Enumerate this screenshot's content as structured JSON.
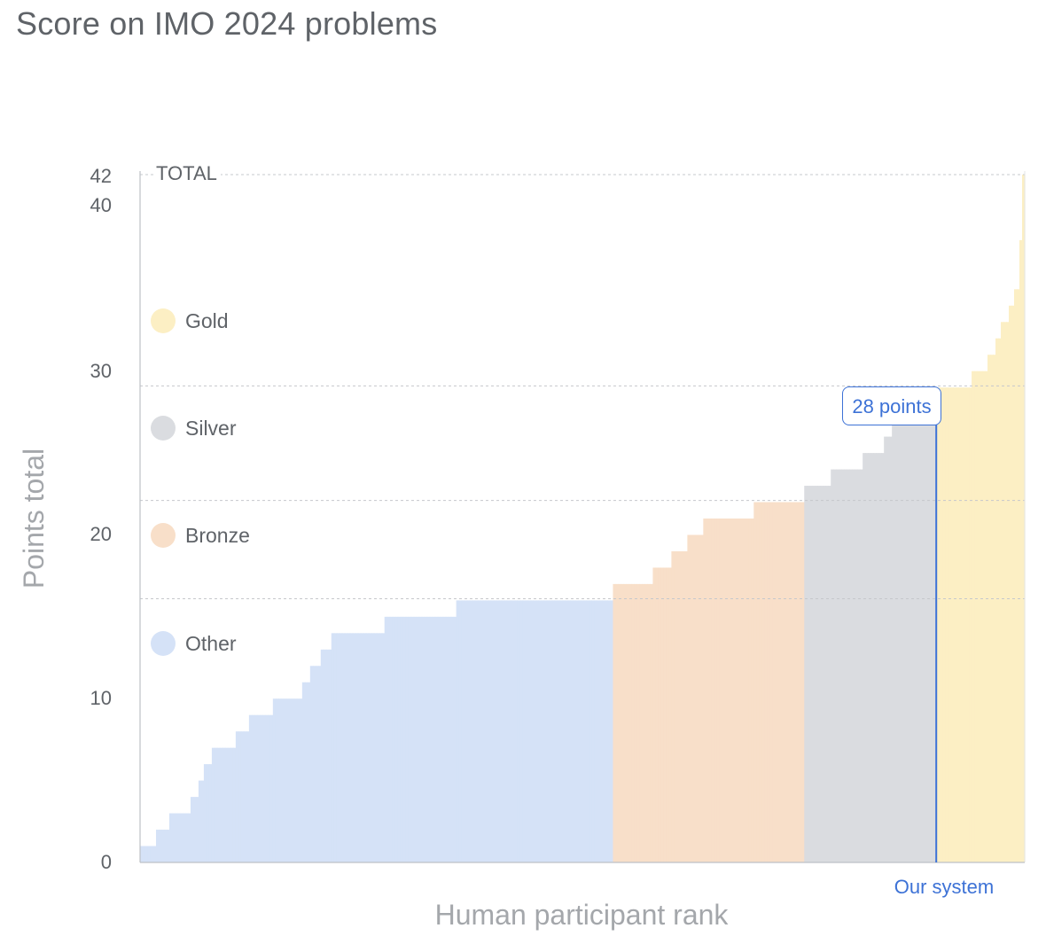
{
  "title": "Score on IMO 2024 problems",
  "chart_data": {
    "type": "area",
    "title": "Score on IMO 2024 problems",
    "xlabel": "Human participant rank",
    "ylabel": "Points total",
    "ylim": [
      0,
      42
    ],
    "yticks": [
      "0",
      "10",
      "20",
      "30",
      "40",
      "42"
    ],
    "total_label": "TOTAL",
    "medal_cutoffs": {
      "gold": 29,
      "silver": 22,
      "bronze": 16
    },
    "grid": "dashed at medal cutoffs and maximum",
    "legend": [
      {
        "name": "Gold",
        "color": "#fcefc4"
      },
      {
        "name": "Silver",
        "color": "#dadce0"
      },
      {
        "name": "Bronze",
        "color": "#f8dfc9"
      },
      {
        "name": "Other",
        "color": "#d5e2f7"
      }
    ],
    "series": [
      {
        "name": "Other",
        "color": "#d5e2f7",
        "values": [
          1,
          1,
          1,
          1,
          1,
          1,
          2,
          2,
          2,
          2,
          2,
          3,
          3,
          3,
          3,
          3,
          3,
          3,
          3,
          4,
          4,
          4,
          5,
          5,
          6,
          6,
          6,
          7,
          7,
          7,
          7,
          7,
          7,
          7,
          7,
          7,
          8,
          8,
          8,
          8,
          8,
          9,
          9,
          9,
          9,
          9,
          9,
          9,
          9,
          9,
          10,
          10,
          10,
          10,
          10,
          10,
          10,
          10,
          10,
          10,
          10,
          11,
          11,
          11,
          12,
          12,
          12,
          12,
          13,
          13,
          13,
          13,
          14,
          14,
          14,
          14,
          14,
          14,
          14,
          14,
          14,
          14,
          14,
          14,
          14,
          14,
          14,
          14,
          14,
          14,
          14,
          14,
          15,
          15,
          15,
          15,
          15,
          15,
          15,
          15,
          15,
          15,
          15,
          15,
          15,
          15,
          15,
          15,
          15,
          15,
          15,
          15,
          15,
          15,
          15,
          15,
          15,
          15,
          15,
          16,
          16,
          16,
          16,
          16,
          16,
          16,
          16,
          16,
          16,
          16,
          16,
          16,
          16,
          16,
          16,
          16,
          16,
          16,
          16,
          16,
          16,
          16,
          16,
          16,
          16,
          16,
          16,
          16,
          16,
          16,
          16,
          16,
          16,
          16,
          16,
          16,
          16,
          16,
          16,
          16,
          16,
          16,
          16,
          16,
          16,
          16,
          16,
          16,
          16,
          16,
          16,
          16,
          16,
          16,
          16,
          16,
          16,
          16
        ]
      },
      {
        "name": "Bronze",
        "color": "#f8dfc9",
        "values": [
          17,
          17,
          17,
          17,
          17,
          17,
          17,
          17,
          17,
          17,
          17,
          17,
          17,
          17,
          17,
          18,
          18,
          18,
          18,
          18,
          18,
          18,
          19,
          19,
          19,
          19,
          19,
          19,
          20,
          20,
          20,
          20,
          20,
          20,
          21,
          21,
          21,
          21,
          21,
          21,
          21,
          21,
          21,
          21,
          21,
          21,
          21,
          21,
          21,
          21,
          21,
          21,
          21,
          22,
          22,
          22,
          22,
          22,
          22,
          22,
          22,
          22,
          22,
          22,
          22,
          22,
          22,
          22,
          22,
          22,
          22,
          22
        ]
      },
      {
        "name": "Silver",
        "color": "#dadce0",
        "values": [
          23,
          23,
          23,
          23,
          23,
          23,
          23,
          23,
          23,
          23,
          24,
          24,
          24,
          24,
          24,
          24,
          24,
          24,
          24,
          24,
          24,
          24,
          25,
          25,
          25,
          25,
          25,
          25,
          25,
          25,
          26,
          26,
          26,
          27,
          27,
          27,
          27,
          27,
          27,
          27,
          27,
          27,
          28,
          28,
          28,
          28,
          28,
          28,
          28,
          28
        ]
      },
      {
        "name": "Gold",
        "color": "#fcefc4",
        "values": [
          29,
          29,
          29,
          29,
          29,
          29,
          29,
          29,
          29,
          29,
          29,
          29,
          29,
          30,
          30,
          30,
          30,
          30,
          30,
          31,
          31,
          31,
          32,
          32,
          33,
          33,
          33,
          34,
          34,
          35,
          35,
          38,
          42
        ]
      }
    ],
    "highlight": {
      "label": "28 points",
      "value": 28,
      "x_label": "Our system"
    }
  }
}
